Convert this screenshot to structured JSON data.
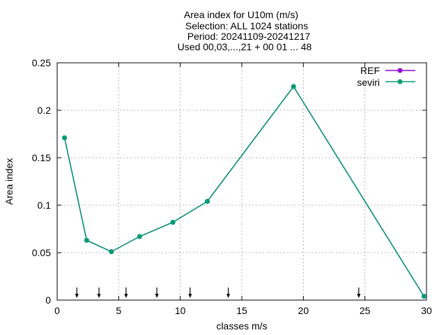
{
  "chart_data": {
    "type": "line",
    "title_lines": [
      "Area index  for U10m (m/s)",
      "Selection: ALL    1024 stations",
      "Period: 20241109-20241217",
      "Used 00,03,...,21 + 00 01 ... 48"
    ],
    "xlabel": "classes m/s",
    "ylabel": "Area index",
    "xlim": [
      0,
      30
    ],
    "ylim": [
      0,
      0.25
    ],
    "xticks": [
      0,
      5,
      10,
      15,
      20,
      25,
      30
    ],
    "xtick_labels": [
      "0",
      "5",
      "10",
      "15",
      "20",
      "25",
      "30"
    ],
    "yticks": [
      0,
      0.05,
      0.1,
      0.15,
      0.2,
      0.25
    ],
    "ytick_labels": [
      "0",
      "0.05",
      "0.1",
      "0.15",
      "0.2",
      "0.25"
    ],
    "grid": true,
    "legend_position": "top-right",
    "arrows_x": [
      1.6,
      3.4,
      5.6,
      8.1,
      10.8,
      13.9,
      24.5
    ],
    "series": [
      {
        "name": "REF",
        "color": "#9400d3",
        "x": [
          0.6,
          2.4,
          4.4,
          6.7,
          9.4,
          12.2,
          19.2,
          29.8
        ],
        "y": [
          0.171,
          0.063,
          0.051,
          0.067,
          0.082,
          0.104,
          0.225,
          0.004
        ]
      },
      {
        "name": "seviri",
        "color": "#009e73",
        "x": [
          0.6,
          2.4,
          4.4,
          6.7,
          9.4,
          12.2,
          19.2,
          29.8
        ],
        "y": [
          0.171,
          0.063,
          0.051,
          0.067,
          0.082,
          0.104,
          0.225,
          0.004
        ]
      }
    ]
  }
}
